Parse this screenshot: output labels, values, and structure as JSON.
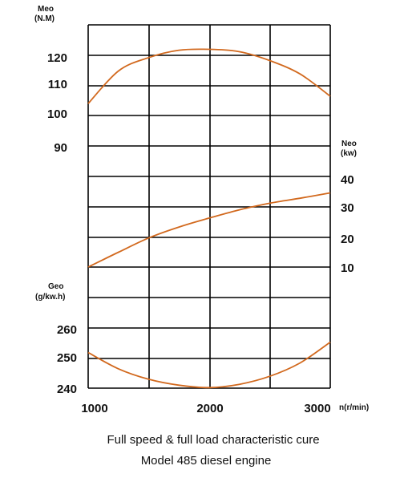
{
  "chart_data": {
    "type": "line",
    "x": {
      "label": "n(r/min)",
      "range": [
        1000,
        3000
      ],
      "ticks": [
        "1000",
        "2000",
        "3000"
      ]
    },
    "axes": {
      "torque": {
        "label_line1": "Meo",
        "label_line2": "(N.M)",
        "ticks": [
          {
            "label": "120",
            "value": 120
          },
          {
            "label": "110",
            "value": 110
          },
          {
            "label": "100",
            "value": 100
          },
          {
            "label": "90",
            "value": 90
          }
        ]
      },
      "power": {
        "label_line1": "Neo",
        "label_line2": "(kw)",
        "ticks": [
          {
            "label": "40",
            "value": 40
          },
          {
            "label": "30",
            "value": 30
          },
          {
            "label": "20",
            "value": 20
          },
          {
            "label": "10",
            "value": 10
          }
        ]
      },
      "fuel": {
        "label_line1": "Geo",
        "label_line2": "(g/kw.h)",
        "ticks": [
          {
            "label": "260",
            "value": 260
          },
          {
            "label": "250",
            "value": 250
          },
          {
            "label": "240",
            "value": 240
          }
        ]
      }
    },
    "series": [
      {
        "axis": "torque",
        "points": [
          [
            1000,
            104
          ],
          [
            1250,
            115
          ],
          [
            1500,
            119.5
          ],
          [
            1750,
            122
          ],
          [
            2000,
            122.3
          ],
          [
            2250,
            121.5
          ],
          [
            2500,
            118.5
          ],
          [
            2750,
            114
          ],
          [
            3000,
            106.5
          ]
        ]
      },
      {
        "axis": "power",
        "points": [
          [
            1000,
            10
          ],
          [
            1250,
            15
          ],
          [
            1500,
            19.8
          ],
          [
            1750,
            23.5
          ],
          [
            2000,
            26.5
          ],
          [
            2250,
            29.3
          ],
          [
            2500,
            31.5
          ],
          [
            2750,
            33.2
          ],
          [
            3000,
            35
          ]
        ]
      },
      {
        "axis": "fuel",
        "points": [
          [
            1000,
            252
          ],
          [
            1250,
            246.5
          ],
          [
            1500,
            243
          ],
          [
            1750,
            241
          ],
          [
            2000,
            240.2
          ],
          [
            2250,
            241.3
          ],
          [
            2500,
            244
          ],
          [
            2750,
            248.5
          ],
          [
            3000,
            255.5
          ]
        ]
      }
    ],
    "colors": {
      "curve": "#d2691e",
      "grid": "#000000",
      "text": "#111111"
    },
    "grid": true,
    "caption_line1": "Full speed & full load characteristic cure",
    "caption_line2": "Model 485 diesel engine"
  }
}
